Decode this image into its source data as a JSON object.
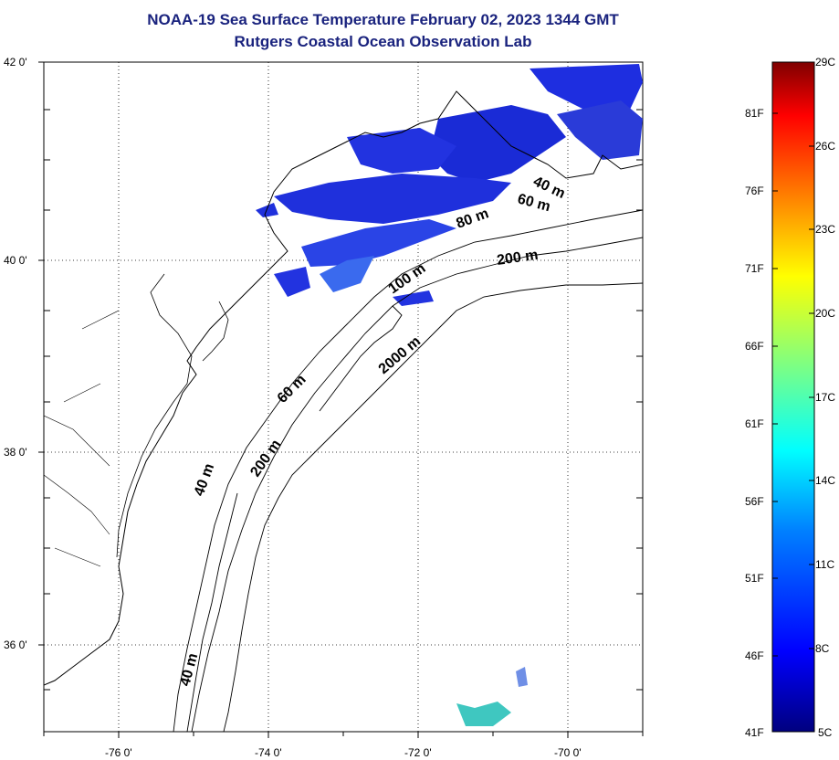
{
  "title": "NOAA-19 Sea Surface Temperature February 02, 2023 1344 GMT",
  "subtitle": "Rutgers Coastal Ocean Observation Lab",
  "map": {
    "lat_ticks": [
      "42 0'",
      "40 0'",
      "38 0'",
      "36 0'"
    ],
    "lon_ticks": [
      "-76 0'",
      "-74 0'",
      "-72 0'",
      "-70 0'"
    ],
    "lat_range": [
      35.2,
      42.0
    ],
    "lon_range": [
      -77.0,
      -69.0
    ],
    "grid": "dotted",
    "contour_labels": [
      "40 m",
      "60 m",
      "80 m",
      "200 m",
      "100 m",
      "2000 m",
      "60 m",
      "40 m",
      "200 m",
      "40 m"
    ]
  },
  "colorbar": {
    "f_labels": [
      "81F",
      "76F",
      "71F",
      "66F",
      "61F",
      "56F",
      "51F",
      "46F",
      "41F"
    ],
    "c_labels": [
      "29C",
      "26C",
      "23C",
      "20C",
      "17C",
      "14C",
      "11C",
      "8C",
      "5C"
    ],
    "colors": [
      "#00008f",
      "#0000ff",
      "#0080ff",
      "#00ffff",
      "#80ff80",
      "#ffff00",
      "#ff8000",
      "#ff0000",
      "#800000"
    ]
  }
}
